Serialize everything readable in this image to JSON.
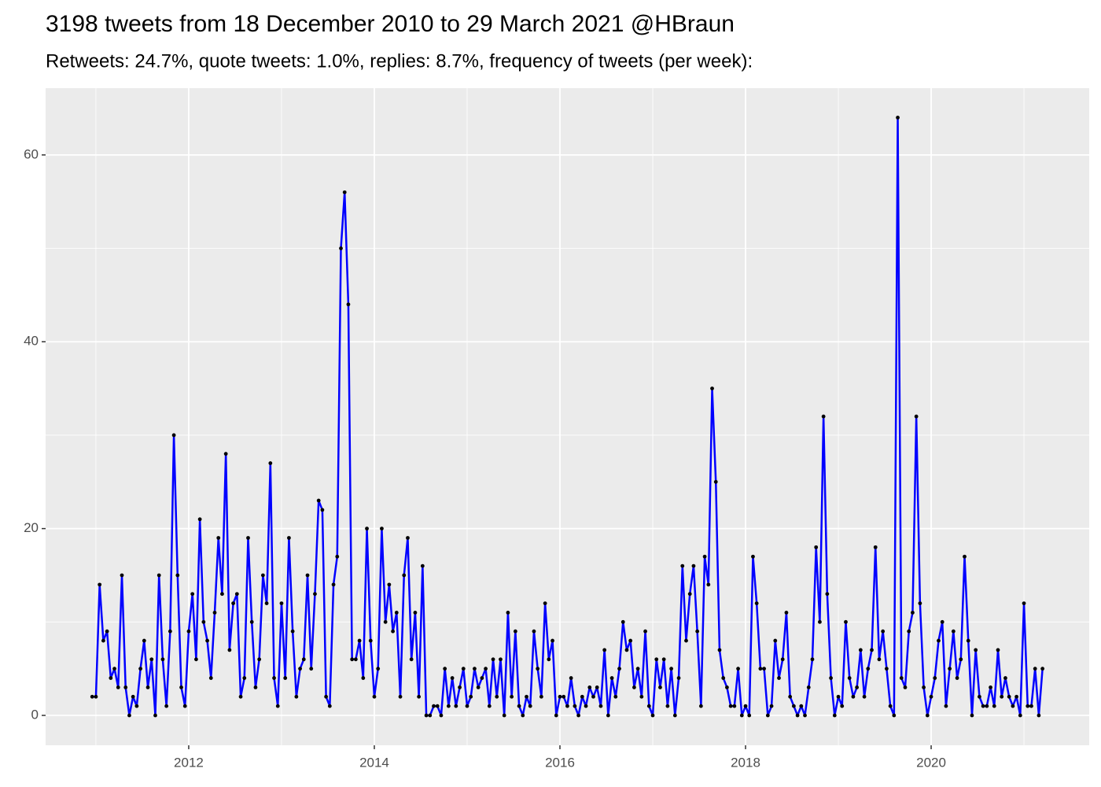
{
  "chart_data": {
    "type": "line",
    "title": "3198 tweets from 18 December 2010 to 29 March 2021 @HBraun",
    "subtitle": "Retweets: 24.7%, quote tweets: 1.0%, replies: 8.7%, frequency of tweets (per week):",
    "x": [
      2010.96,
      2011,
      2011.04,
      2011.08,
      2011.12,
      2011.16,
      2011.2,
      2011.24,
      2011.28,
      2011.32,
      2011.36,
      2011.4,
      2011.44,
      2011.48,
      2011.52,
      2011.56,
      2011.6,
      2011.64,
      2011.68,
      2011.72,
      2011.76,
      2011.8,
      2011.84,
      2011.88,
      2011.92,
      2011.96,
      2012,
      2012.04,
      2012.08,
      2012.12,
      2012.16,
      2012.2,
      2012.24,
      2012.28,
      2012.32,
      2012.36,
      2012.4,
      2012.44,
      2012.48,
      2012.52,
      2012.56,
      2012.6,
      2012.64,
      2012.68,
      2012.72,
      2012.76,
      2012.8,
      2012.84,
      2012.88,
      2012.92,
      2012.96,
      2013,
      2013.04,
      2013.08,
      2013.12,
      2013.16,
      2013.2,
      2013.24,
      2013.28,
      2013.32,
      2013.36,
      2013.4,
      2013.44,
      2013.48,
      2013.52,
      2013.56,
      2013.6,
      2013.64,
      2013.68,
      2013.72,
      2013.76,
      2013.8,
      2013.84,
      2013.88,
      2013.92,
      2013.96,
      2014,
      2014.04,
      2014.08,
      2014.12,
      2014.16,
      2014.2,
      2014.24,
      2014.28,
      2014.32,
      2014.36,
      2014.4,
      2014.44,
      2014.48,
      2014.52,
      2014.56,
      2014.6,
      2014.64,
      2014.68,
      2014.72,
      2014.76,
      2014.8,
      2014.84,
      2014.88,
      2014.92,
      2014.96,
      2015,
      2015.04,
      2015.08,
      2015.12,
      2015.16,
      2015.2,
      2015.24,
      2015.28,
      2015.32,
      2015.36,
      2015.4,
      2015.44,
      2015.48,
      2015.52,
      2015.56,
      2015.6,
      2015.64,
      2015.68,
      2015.72,
      2015.76,
      2015.8,
      2015.84,
      2015.88,
      2015.92,
      2015.96,
      2016,
      2016.04,
      2016.08,
      2016.12,
      2016.16,
      2016.2,
      2016.24,
      2016.28,
      2016.32,
      2016.36,
      2016.4,
      2016.44,
      2016.48,
      2016.52,
      2016.56,
      2016.6,
      2016.64,
      2016.68,
      2016.72,
      2016.76,
      2016.8,
      2016.84,
      2016.88,
      2016.92,
      2016.96,
      2017,
      2017.04,
      2017.08,
      2017.12,
      2017.16,
      2017.2,
      2017.24,
      2017.28,
      2017.32,
      2017.36,
      2017.4,
      2017.44,
      2017.48,
      2017.52,
      2017.56,
      2017.6,
      2017.64,
      2017.68,
      2017.72,
      2017.76,
      2017.8,
      2017.84,
      2017.88,
      2017.92,
      2017.96,
      2018,
      2018.04,
      2018.08,
      2018.12,
      2018.16,
      2018.2,
      2018.24,
      2018.28,
      2018.32,
      2018.36,
      2018.4,
      2018.44,
      2018.48,
      2018.52,
      2018.56,
      2018.6,
      2018.64,
      2018.68,
      2018.72,
      2018.76,
      2018.8,
      2018.84,
      2018.88,
      2018.92,
      2018.96,
      2019,
      2019.04,
      2019.08,
      2019.12,
      2019.16,
      2019.2,
      2019.24,
      2019.28,
      2019.32,
      2019.36,
      2019.4,
      2019.44,
      2019.48,
      2019.52,
      2019.56,
      2019.6,
      2019.64,
      2019.68,
      2019.72,
      2019.76,
      2019.8,
      2019.84,
      2019.88,
      2019.92,
      2019.96,
      2020,
      2020.04,
      2020.08,
      2020.12,
      2020.16,
      2020.2,
      2020.24,
      2020.28,
      2020.32,
      2020.36,
      2020.4,
      2020.44,
      2020.48,
      2020.52,
      2020.56,
      2020.6,
      2020.64,
      2020.68,
      2020.72,
      2020.76,
      2020.8,
      2020.84,
      2020.88,
      2020.92,
      2020.96,
      2021,
      2021.04,
      2021.08,
      2021.12,
      2021.16,
      2021.2
    ],
    "series": [
      {
        "color": "#0000ff",
        "values": [
          2,
          2,
          14,
          8,
          9,
          4,
          5,
          3,
          15,
          3,
          0,
          2,
          1,
          5,
          8,
          3,
          6,
          0,
          15,
          6,
          1,
          9,
          30,
          15,
          3,
          1,
          9,
          13,
          6,
          21,
          10,
          8,
          4,
          11,
          19,
          13,
          28,
          7,
          12,
          13,
          2,
          4,
          19,
          10,
          3,
          6,
          15,
          12,
          27,
          4,
          1,
          12,
          4,
          19,
          9,
          2,
          5,
          6,
          15,
          5,
          13,
          23,
          22,
          2,
          1,
          14,
          17,
          50,
          56,
          44,
          6,
          6,
          8,
          4,
          20,
          8,
          2,
          5,
          20,
          10,
          14,
          9,
          11,
          2,
          15,
          19,
          6,
          11,
          2,
          16,
          0,
          0,
          1,
          1,
          0,
          5,
          1,
          4,
          1,
          3,
          5,
          1,
          2,
          5,
          3,
          4,
          5,
          1,
          6,
          2,
          6,
          0,
          11,
          2,
          9,
          1,
          0,
          2,
          1,
          9,
          5,
          2,
          12,
          6,
          8,
          0,
          2,
          2,
          1,
          4,
          1,
          0,
          2,
          1,
          3,
          2,
          3,
          1,
          7,
          0,
          4,
          2,
          5,
          10,
          7,
          8,
          3,
          5,
          2,
          9,
          1,
          0,
          6,
          3,
          6,
          1,
          5,
          0,
          4,
          16,
          8,
          13,
          16,
          9,
          1,
          17,
          14,
          35,
          25,
          7,
          4,
          3,
          1,
          1,
          5,
          0,
          1,
          0,
          17,
          12,
          5,
          5,
          0,
          1,
          8,
          4,
          6,
          11,
          2,
          1,
          0,
          1,
          0,
          3,
          6,
          18,
          10,
          32,
          13,
          4,
          0,
          2,
          1,
          10,
          4,
          2,
          3,
          7,
          2,
          5,
          7,
          18,
          6,
          9,
          5,
          1,
          0,
          64,
          4,
          3,
          9,
          11,
          32,
          12,
          3,
          0,
          2,
          4,
          8,
          10,
          1,
          5,
          9,
          4,
          6,
          17,
          8,
          0,
          7,
          2,
          1,
          1,
          3,
          1,
          7,
          2,
          4,
          2,
          1,
          2,
          0,
          12,
          1,
          1,
          5,
          0,
          5
        ]
      }
    ],
    "point_color": "#000000",
    "xlim": [
      2010.458,
      2021.703
    ],
    "xticks": [
      2012,
      2014,
      2016,
      2018,
      2020
    ],
    "ylim": [
      -3.2,
      67.15
    ],
    "yticks": [
      0,
      20,
      40,
      60
    ],
    "grid": true
  }
}
